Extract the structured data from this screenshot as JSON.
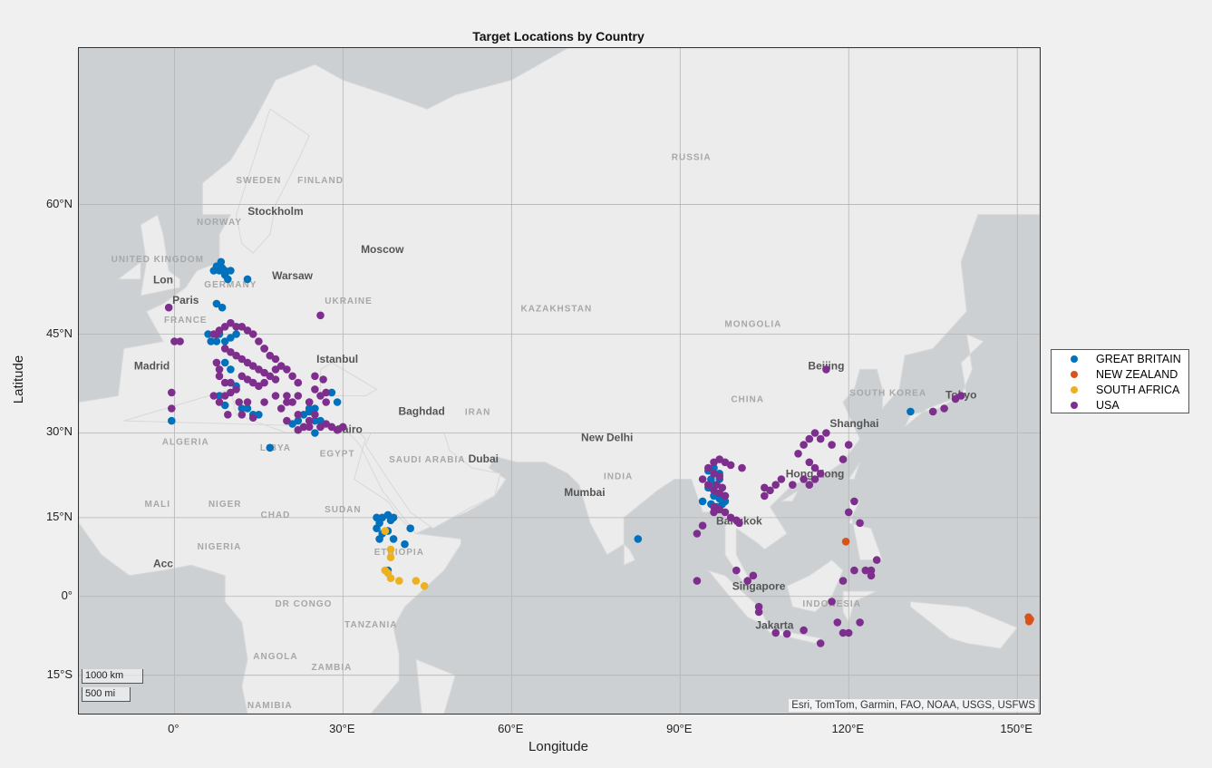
{
  "figure": {
    "title": "Target Locations by Country"
  },
  "basemap": {
    "attribution": "Esri, TomTom, Garmin, FAO, NOAA, USGS, USFWS",
    "scale_km": "1000 km",
    "scale_mi": "500 mi",
    "place_labels": [
      {
        "text": "RUSSIA",
        "lon": 92,
        "lat": 64
      },
      {
        "text": "SWEDEN",
        "lon": 15,
        "lat": 62
      },
      {
        "text": "FINLAND",
        "lon": 26,
        "lat": 62
      },
      {
        "text": "NORWAY",
        "lon": 8,
        "lat": 58
      },
      {
        "text": "Stockholm",
        "lon": 18,
        "lat": 59
      },
      {
        "text": "Moscow",
        "lon": 37,
        "lat": 55
      },
      {
        "text": "UNITED KINGDOM",
        "lon": -3,
        "lat": 54
      },
      {
        "text": "GERMANY",
        "lon": 10,
        "lat": 51
      },
      {
        "text": "Warsaw",
        "lon": 21,
        "lat": 52
      },
      {
        "text": "Lon",
        "lon": -2,
        "lat": 51.5
      },
      {
        "text": "Paris",
        "lon": 2,
        "lat": 49
      },
      {
        "text": "UKRAINE",
        "lon": 31,
        "lat": 49
      },
      {
        "text": "FRANCE",
        "lon": 2,
        "lat": 46.5
      },
      {
        "text": "KAZAKHSTAN",
        "lon": 68,
        "lat": 48
      },
      {
        "text": "MONGOLIA",
        "lon": 103,
        "lat": 46
      },
      {
        "text": "Madrid",
        "lon": -4,
        "lat": 40
      },
      {
        "text": "Istanbul",
        "lon": 29,
        "lat": 41
      },
      {
        "text": "Beijing",
        "lon": 116,
        "lat": 40
      },
      {
        "text": "SOUTH KOREA",
        "lon": 127,
        "lat": 36
      },
      {
        "text": "CHINA",
        "lon": 102,
        "lat": 35
      },
      {
        "text": "Baghdad",
        "lon": 44,
        "lat": 33
      },
      {
        "text": "IRAN",
        "lon": 54,
        "lat": 33
      },
      {
        "text": "Tokyo",
        "lon": 140,
        "lat": 35.6
      },
      {
        "text": "Shanghai",
        "lon": 121,
        "lat": 31
      },
      {
        "text": "ALGERIA",
        "lon": 2,
        "lat": 28
      },
      {
        "text": "LIBYA",
        "lon": 18,
        "lat": 27
      },
      {
        "text": "Cairo",
        "lon": 31,
        "lat": 30
      },
      {
        "text": "EGYPT",
        "lon": 29,
        "lat": 26
      },
      {
        "text": "New Delhi",
        "lon": 77,
        "lat": 28.6
      },
      {
        "text": "SAUDI ARABIA",
        "lon": 45,
        "lat": 25
      },
      {
        "text": "Dubai",
        "lon": 55,
        "lat": 25
      },
      {
        "text": "INDIA",
        "lon": 79,
        "lat": 22
      },
      {
        "text": "Hong Kong",
        "lon": 114,
        "lat": 22.3
      },
      {
        "text": "Mumbai",
        "lon": 73,
        "lat": 19
      },
      {
        "text": "MALI",
        "lon": -3,
        "lat": 17
      },
      {
        "text": "NIGER",
        "lon": 9,
        "lat": 17
      },
      {
        "text": "CHAD",
        "lon": 18,
        "lat": 15
      },
      {
        "text": "SUDAN",
        "lon": 30,
        "lat": 16
      },
      {
        "text": "Bangkok",
        "lon": 100.5,
        "lat": 13.7
      },
      {
        "text": "NIGERIA",
        "lon": 8,
        "lat": 9
      },
      {
        "text": "ETHIOPIA",
        "lon": 40,
        "lat": 8
      },
      {
        "text": "Acc",
        "lon": -2,
        "lat": 5.6
      },
      {
        "text": "Singapore",
        "lon": 104,
        "lat": 1.3
      },
      {
        "text": "DR CONGO",
        "lon": 23,
        "lat": -2
      },
      {
        "text": "TANZANIA",
        "lon": 35,
        "lat": -6
      },
      {
        "text": "Jakarta",
        "lon": 106.8,
        "lat": -6.2
      },
      {
        "text": "INDONESIA",
        "lon": 117,
        "lat": -2
      },
      {
        "text": "ANGOLA",
        "lon": 18,
        "lat": -12
      },
      {
        "text": "ZAMBIA",
        "lon": 28,
        "lat": -14
      },
      {
        "text": "NAMIBIA",
        "lon": 17,
        "lat": -21
      }
    ]
  },
  "axes": {
    "xlabel": "Longitude",
    "ylabel": "Latitude",
    "xlim": [
      -17,
      154
    ],
    "ylim": [
      -22,
      72
    ],
    "projection": "web-mercator",
    "grid": true
  },
  "x_ticks": [
    {
      "lon": 0,
      "label": "0°"
    },
    {
      "lon": 30,
      "label": "30°E"
    },
    {
      "lon": 60,
      "label": "60°E"
    },
    {
      "lon": 90,
      "label": "90°E"
    },
    {
      "lon": 120,
      "label": "120°E"
    },
    {
      "lon": 150,
      "label": "150°E"
    }
  ],
  "y_ticks": [
    {
      "lat": 60,
      "label": "60°N"
    },
    {
      "lat": 45,
      "label": "45°N"
    },
    {
      "lat": 30,
      "label": "30°N"
    },
    {
      "lat": 15,
      "label": "15°N"
    },
    {
      "lat": 0,
      "label": "0°"
    },
    {
      "lat": -15,
      "label": "15°S"
    }
  ],
  "legend": {
    "placement": "right"
  },
  "colors": {
    "GREAT BRITAIN": "#0072bd",
    "NEW ZEALAND": "#d95319",
    "SOUTH AFRICA": "#edb120",
    "USA": "#7e2f8e",
    "land": "#ececec",
    "water": "#ccd0d3"
  },
  "chart_data": {
    "type": "scatter",
    "title": "Target Locations by Country",
    "xlabel": "Longitude",
    "ylabel": "Latitude",
    "series": [
      {
        "name": "GREAT BRITAIN",
        "points": [
          [
            7,
            53
          ],
          [
            7.5,
            53.5
          ],
          [
            8,
            53
          ],
          [
            8.3,
            54
          ],
          [
            8.5,
            53.3
          ],
          [
            9,
            52.5
          ],
          [
            9,
            53
          ],
          [
            9.5,
            52
          ],
          [
            10,
            53
          ],
          [
            13,
            52
          ],
          [
            7.5,
            49
          ],
          [
            8.5,
            48.5
          ],
          [
            6,
            45
          ],
          [
            6.5,
            44
          ],
          [
            7.5,
            44
          ],
          [
            8,
            45
          ],
          [
            9,
            44
          ],
          [
            10,
            44.5
          ],
          [
            11,
            45
          ],
          [
            16,
            43
          ],
          [
            9,
            41
          ],
          [
            10,
            40
          ],
          [
            10,
            38
          ],
          [
            11,
            37.5
          ],
          [
            -0.5,
            32
          ],
          [
            8,
            36
          ],
          [
            9,
            34.5
          ],
          [
            12,
            34
          ],
          [
            13,
            34
          ],
          [
            14,
            33
          ],
          [
            15,
            33
          ],
          [
            17,
            27.5
          ],
          [
            22,
            32
          ],
          [
            23,
            33
          ],
          [
            24,
            33.5
          ],
          [
            25,
            34
          ],
          [
            24,
            35
          ],
          [
            24,
            34
          ],
          [
            25,
            32
          ],
          [
            26,
            32
          ],
          [
            28,
            36.5
          ],
          [
            29,
            35
          ],
          [
            25,
            30
          ],
          [
            26,
            31
          ],
          [
            21,
            31.5
          ],
          [
            36,
            15
          ],
          [
            36.5,
            14
          ],
          [
            37,
            15
          ],
          [
            38,
            15.5
          ],
          [
            38.5,
            14.5
          ],
          [
            39,
            15
          ],
          [
            36,
            13
          ],
          [
            37,
            12
          ],
          [
            36.5,
            11
          ],
          [
            38,
            12.5
          ],
          [
            39,
            11
          ],
          [
            41,
            10
          ],
          [
            42,
            13
          ],
          [
            38,
            5
          ],
          [
            97,
            23
          ],
          [
            97,
            22
          ],
          [
            96,
            21
          ],
          [
            95,
            20.5
          ],
          [
            96,
            19
          ],
          [
            97,
            18.5
          ],
          [
            98,
            18
          ],
          [
            98,
            19
          ],
          [
            96.5,
            17
          ],
          [
            95.5,
            17.5
          ],
          [
            97.5,
            17.5
          ],
          [
            94,
            18
          ],
          [
            95,
            23.5
          ],
          [
            95.5,
            22
          ],
          [
            96,
            24
          ],
          [
            82.5,
            11
          ],
          [
            131,
            33.5
          ]
        ]
      },
      {
        "name": "NEW ZEALAND",
        "points": [
          [
            119.5,
            10.5
          ],
          [
            152,
            -4
          ],
          [
            152.3,
            -4.4
          ],
          [
            152.1,
            -4.8
          ]
        ]
      },
      {
        "name": "SOUTH AFRICA",
        "points": [
          [
            37.5,
            12.5
          ],
          [
            38.5,
            9
          ],
          [
            38.5,
            7.5
          ],
          [
            37.5,
            5
          ],
          [
            38,
            4.5
          ],
          [
            38.5,
            3.5
          ],
          [
            40,
            3
          ],
          [
            43,
            3
          ],
          [
            44.5,
            2
          ]
        ]
      },
      {
        "name": "USA",
        "points": [
          [
            -1,
            48.5
          ],
          [
            0,
            44
          ],
          [
            1,
            44
          ],
          [
            7,
            45
          ],
          [
            7.5,
            45
          ],
          [
            8,
            45.5
          ],
          [
            9,
            46
          ],
          [
            10,
            46.5
          ],
          [
            11,
            46
          ],
          [
            12,
            46
          ],
          [
            13,
            45.5
          ],
          [
            14,
            45
          ],
          [
            15,
            44
          ],
          [
            16,
            43
          ],
          [
            17,
            42
          ],
          [
            18,
            41.5
          ],
          [
            19,
            40.5
          ],
          [
            20,
            40
          ],
          [
            21,
            39
          ],
          [
            22,
            38
          ],
          [
            9,
            43
          ],
          [
            10,
            42.5
          ],
          [
            11,
            42
          ],
          [
            12,
            41.5
          ],
          [
            13,
            41
          ],
          [
            14,
            40.5
          ],
          [
            15,
            40
          ],
          [
            16,
            39.5
          ],
          [
            17,
            39
          ],
          [
            18,
            38.5
          ],
          [
            12,
            39
          ],
          [
            13,
            38.5
          ],
          [
            14,
            38
          ],
          [
            15,
            37.5
          ],
          [
            11,
            37
          ],
          [
            10,
            36.5
          ],
          [
            9,
            36
          ],
          [
            8,
            35
          ],
          [
            7,
            36
          ],
          [
            11.5,
            35
          ],
          [
            13,
            35
          ],
          [
            9.5,
            33
          ],
          [
            12,
            33
          ],
          [
            14,
            32.5
          ],
          [
            16,
            35
          ],
          [
            18,
            36
          ],
          [
            19,
            34
          ],
          [
            20,
            32
          ],
          [
            22,
            30.5
          ],
          [
            23,
            31
          ],
          [
            24,
            32
          ],
          [
            25,
            33
          ],
          [
            26,
            31
          ],
          [
            27,
            31.5
          ],
          [
            28,
            31
          ],
          [
            29,
            30.5
          ],
          [
            30,
            31
          ],
          [
            27,
            35
          ],
          [
            25,
            37
          ],
          [
            26,
            36
          ],
          [
            24,
            35
          ],
          [
            22,
            36
          ],
          [
            21,
            35
          ],
          [
            20,
            35
          ],
          [
            25,
            39
          ],
          [
            26.5,
            38.5
          ],
          [
            26,
            47.5
          ],
          [
            27,
            36.5
          ],
          [
            8,
            39
          ],
          [
            7.5,
            41
          ],
          [
            8,
            40
          ],
          [
            9,
            38
          ],
          [
            10,
            38
          ],
          [
            -0.5,
            36.5
          ],
          [
            -0.5,
            34
          ],
          [
            16,
            38
          ],
          [
            18,
            40
          ],
          [
            20,
            36
          ],
          [
            22,
            33
          ],
          [
            24,
            31
          ],
          [
            95,
            24
          ],
          [
            96,
            25
          ],
          [
            97,
            25.5
          ],
          [
            98,
            25
          ],
          [
            99,
            24.5
          ],
          [
            96,
            23
          ],
          [
            97,
            22.5
          ],
          [
            96.5,
            21
          ],
          [
            97.5,
            20.5
          ],
          [
            96,
            20
          ],
          [
            97,
            19.5
          ],
          [
            98,
            19
          ],
          [
            95,
            21
          ],
          [
            94,
            22
          ],
          [
            96,
            17
          ],
          [
            97,
            16.5
          ],
          [
            98,
            16
          ],
          [
            99,
            15
          ],
          [
            100,
            14.5
          ],
          [
            100.5,
            14
          ],
          [
            101,
            24
          ],
          [
            93,
            12
          ],
          [
            94,
            13.5
          ],
          [
            96,
            16
          ],
          [
            100,
            5
          ],
          [
            102,
            3
          ],
          [
            103,
            4
          ],
          [
            104,
            -2
          ],
          [
            104,
            -3
          ],
          [
            107,
            -7
          ],
          [
            109,
            -7.2
          ],
          [
            112,
            -6.5
          ],
          [
            115,
            -9
          ],
          [
            118,
            -5
          ],
          [
            117,
            -1
          ],
          [
            119,
            -7
          ],
          [
            120,
            -7
          ],
          [
            122,
            -5
          ],
          [
            121,
            5
          ],
          [
            123,
            5
          ],
          [
            124,
            5
          ],
          [
            125,
            7
          ],
          [
            124,
            4
          ],
          [
            122,
            14
          ],
          [
            120,
            16
          ],
          [
            121,
            18
          ],
          [
            119,
            3
          ],
          [
            105,
            20.5
          ],
          [
            106,
            20
          ],
          [
            107,
            21
          ],
          [
            108,
            22
          ],
          [
            110,
            21
          ],
          [
            112,
            22
          ],
          [
            111,
            26.5
          ],
          [
            112,
            28
          ],
          [
            113,
            29
          ],
          [
            114,
            30
          ],
          [
            115,
            29
          ],
          [
            116,
            30
          ],
          [
            117,
            28
          ],
          [
            113,
            25
          ],
          [
            114,
            24
          ],
          [
            115,
            23
          ],
          [
            114,
            22
          ],
          [
            113,
            21
          ],
          [
            119,
            25.5
          ],
          [
            120,
            28
          ],
          [
            116,
            40
          ],
          [
            135,
            33.5
          ],
          [
            137,
            34
          ],
          [
            139,
            35.5
          ],
          [
            140,
            36
          ],
          [
            93,
            3
          ],
          [
            105,
            19
          ]
        ]
      }
    ]
  }
}
